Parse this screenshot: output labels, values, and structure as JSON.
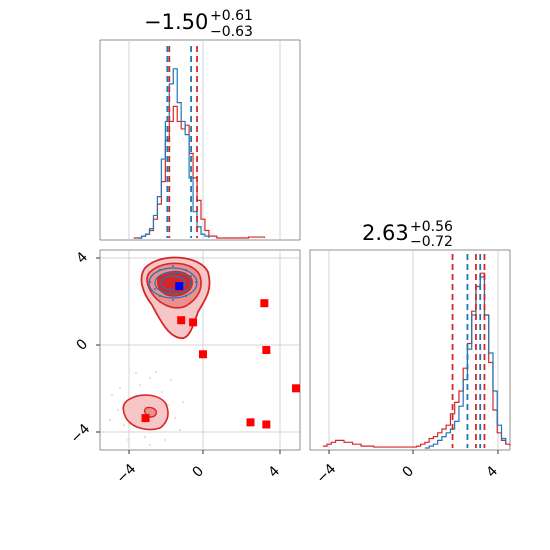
{
  "chart_data": {
    "type": "corner",
    "colors": {
      "truth": "#d62728",
      "samples": "#1f77b4",
      "points": "#ff0000",
      "point_best": "#0000ff",
      "grid": "#b0b0b0"
    },
    "titles": [
      {
        "main": "−1.50",
        "sup": "+0.61",
        "sub": "−0.63"
      },
      {
        "main": "2.63",
        "sup": "+0.56",
        "sub": "−0.72"
      }
    ],
    "ticks": {
      "x": [
        -4,
        0,
        4
      ],
      "y": [
        -4,
        0,
        4
      ],
      "x_labels": [
        "−4",
        "0",
        "4"
      ],
      "y_labels": [
        "−4",
        "0",
        "4"
      ]
    },
    "ranges": {
      "param1": [
        -5.5,
        4.6
      ],
      "param2": [
        -4.8,
        4.6
      ]
    },
    "grid": true,
    "hist1": {
      "blue_x": [
        -3.6,
        -3.4,
        -3.2,
        -3.0,
        -2.8,
        -2.6,
        -2.4,
        -2.2,
        -2.0,
        -1.8,
        -1.6,
        -1.4,
        -1.2,
        -1.0,
        -0.8,
        -0.6,
        -0.4,
        -0.2,
        0.0
      ],
      "blue_y": [
        0,
        0.01,
        0.02,
        0.05,
        0.12,
        0.22,
        0.42,
        0.62,
        0.82,
        0.9,
        0.72,
        0.62,
        0.55,
        0.32,
        0.14,
        0.06,
        0.02,
        0.01,
        0
      ],
      "red_x": [
        -3.8,
        -3.6,
        -3.4,
        -3.2,
        -3.0,
        -2.8,
        -2.6,
        -2.4,
        -2.2,
        -2.0,
        -1.8,
        -1.6,
        -1.4,
        -1.2,
        -1.0,
        -0.8,
        -0.6,
        -0.4,
        -0.2,
        0.0,
        0.4,
        2.0,
        2.4,
        2.8
      ],
      "red_y": [
        0,
        0,
        0.01,
        0.02,
        0.04,
        0.1,
        0.18,
        0.3,
        0.52,
        0.62,
        0.7,
        0.62,
        0.58,
        0.6,
        0.45,
        0.32,
        0.2,
        0.1,
        0.04,
        0.01,
        0,
        0.005,
        0.005,
        0
      ],
      "blue_lines": [
        -2.1,
        -0.9
      ],
      "red_lines": [
        -2.0,
        -0.6
      ]
    },
    "hist2": {
      "blue_x": [
        0.6,
        0.8,
        1.0,
        1.2,
        1.4,
        1.6,
        1.8,
        2.0,
        2.2,
        2.4,
        2.6,
        2.8,
        3.0,
        3.2,
        3.4,
        3.6,
        3.8,
        4.0,
        4.2,
        4.4
      ],
      "blue_y": [
        0,
        0.01,
        0.02,
        0.04,
        0.06,
        0.08,
        0.1,
        0.14,
        0.22,
        0.36,
        0.52,
        0.7,
        0.85,
        0.9,
        0.7,
        0.5,
        0.3,
        0.12,
        0.05,
        0.02
      ],
      "red_x": [
        -4.2,
        -4.0,
        -3.8,
        -3.6,
        -3.4,
        -3.2,
        -3.0,
        -2.8,
        -2.6,
        -2.4,
        -2.2,
        -2.0,
        -1.8,
        -1.6,
        -1.4,
        -1.2,
        -1.0,
        -0.8,
        -0.6,
        -0.4,
        -0.2,
        0.0,
        0.2,
        0.4,
        0.6,
        0.8,
        1.0,
        1.2,
        1.4,
        1.6,
        1.8,
        2.0,
        2.2,
        2.4,
        2.6,
        2.8,
        3.0,
        3.2,
        3.4,
        3.6,
        3.8,
        4.0,
        4.2,
        4.4,
        4.6
      ],
      "red_y": [
        0.01,
        0.02,
        0.03,
        0.04,
        0.04,
        0.03,
        0.03,
        0.02,
        0.02,
        0.01,
        0.01,
        0.01,
        0.005,
        0.005,
        0.005,
        0.005,
        0.005,
        0.005,
        0.005,
        0.005,
        0.005,
        0.005,
        0.01,
        0.02,
        0.03,
        0.05,
        0.06,
        0.08,
        0.1,
        0.12,
        0.18,
        0.24,
        0.3,
        0.42,
        0.55,
        0.72,
        0.85,
        0.92,
        0.7,
        0.45,
        0.2,
        0.08,
        0.04,
        0.02,
        0.01
      ],
      "blue_lines": [
        2.6,
        3.2
      ],
      "red_lines": [
        1.9,
        3.0,
        3.4
      ]
    },
    "scatter": {
      "red_squares": [
        [
          -1.4,
          1.3
        ],
        [
          -0.8,
          1.2
        ],
        [
          -0.3,
          -0.3
        ],
        [
          2.8,
          2.1
        ],
        [
          2.9,
          -0.1
        ],
        [
          4.6,
          -1.9
        ],
        [
          2.1,
          -3.5
        ],
        [
          2.9,
          -3.6
        ],
        [
          -3.2,
          -3.3
        ]
      ],
      "blue_square": [
        -1.5,
        2.9
      ],
      "mode1_center": [
        -1.5,
        2.9
      ],
      "mode2_center": [
        -3.0,
        -3.1
      ]
    }
  }
}
